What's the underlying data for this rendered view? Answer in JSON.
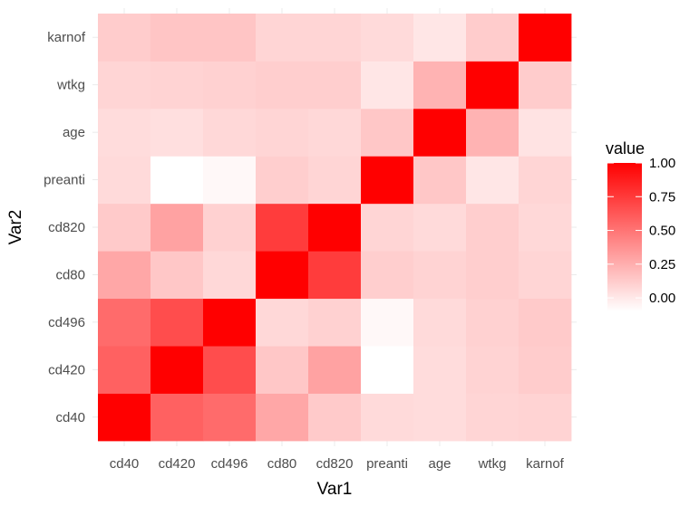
{
  "chart_data": {
    "type": "heatmap",
    "xlabel": "Var1",
    "ylabel": "Var2",
    "x_categories": [
      "cd40",
      "cd420",
      "cd496",
      "cd80",
      "cd820",
      "preanti",
      "age",
      "wtkg",
      "karnof"
    ],
    "y_categories": [
      "cd40",
      "cd420",
      "cd496",
      "cd80",
      "cd820",
      "preanti",
      "age",
      "wtkg",
      "karnof"
    ],
    "values": [
      [
        1.0,
        0.58,
        0.54,
        0.28,
        0.13,
        0.06,
        0.05,
        0.08,
        0.09
      ],
      [
        0.58,
        1.0,
        0.67,
        0.14,
        0.3,
        -0.1,
        0.05,
        0.09,
        0.12
      ],
      [
        0.54,
        0.67,
        1.0,
        0.07,
        0.1,
        -0.07,
        0.06,
        0.1,
        0.13
      ],
      [
        0.28,
        0.14,
        0.07,
        1.0,
        0.74,
        0.11,
        0.09,
        0.11,
        0.08
      ],
      [
        0.13,
        0.3,
        0.1,
        0.74,
        1.0,
        0.08,
        0.06,
        0.11,
        0.07
      ],
      [
        0.06,
        -0.1,
        -0.07,
        0.11,
        0.08,
        1.0,
        0.14,
        0.01,
        0.08
      ],
      [
        0.05,
        0.04,
        0.07,
        0.08,
        0.07,
        0.14,
        1.0,
        0.23,
        0.02
      ],
      [
        0.08,
        0.09,
        0.1,
        0.11,
        0.11,
        0.01,
        0.23,
        1.0,
        0.12
      ],
      [
        0.12,
        0.15,
        0.15,
        0.08,
        0.08,
        0.06,
        0.01,
        0.12,
        1.0
      ]
    ],
    "color_scale": {
      "low_color": "#ffffff",
      "high_color": "#ff0000",
      "min": -0.1,
      "max": 1.0
    },
    "legend": {
      "title": "value",
      "breaks": [
        1.0,
        0.75,
        0.5,
        0.25,
        0.0
      ],
      "labels": [
        "1.00",
        "0.75",
        "0.50",
        "0.25",
        "0.00"
      ],
      "placement": "right"
    },
    "grid": true
  }
}
